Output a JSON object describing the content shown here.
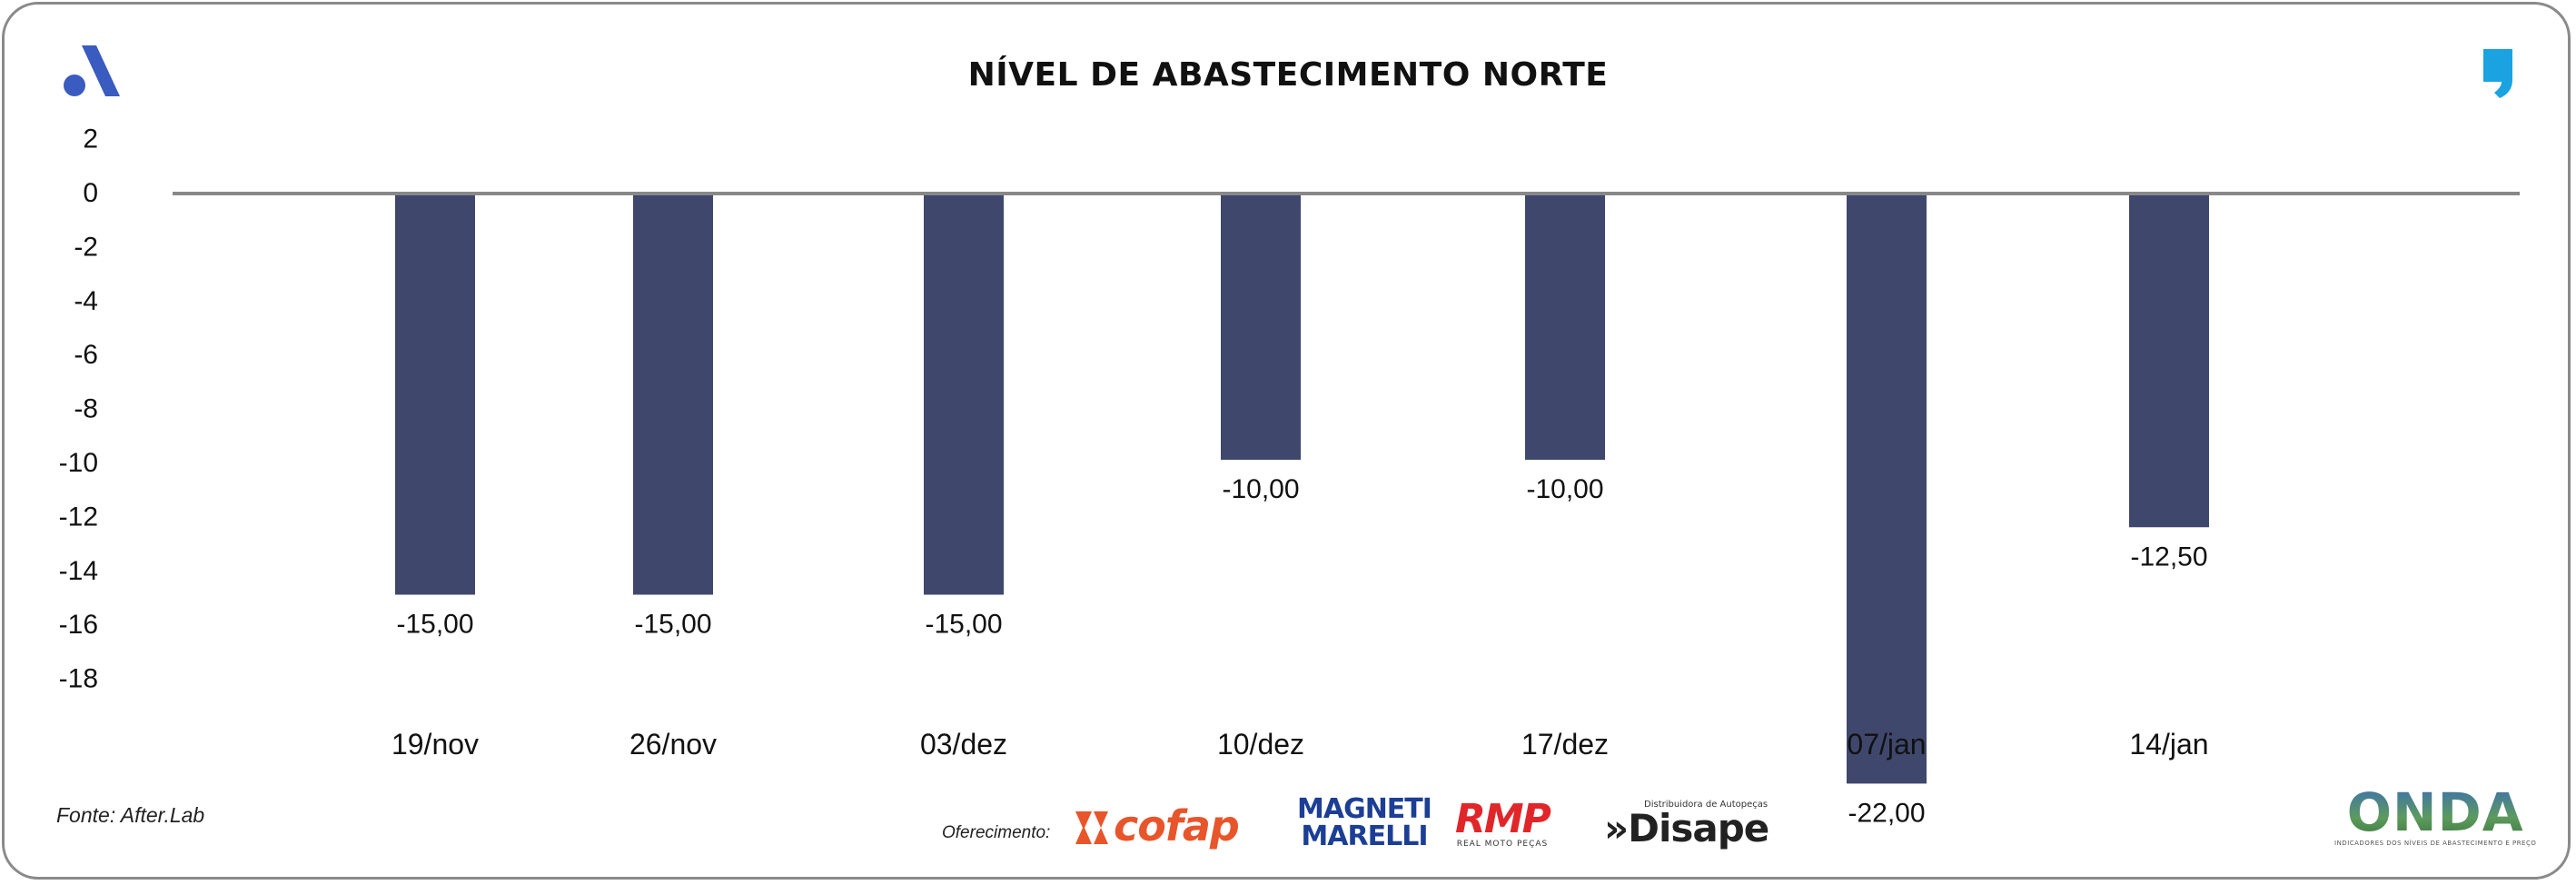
{
  "chart_data": {
    "type": "bar",
    "title": "NÍVEL DE ABASTECIMENTO NORTE",
    "categories": [
      "19/nov",
      "26/nov",
      "03/dez",
      "10/dez",
      "17/dez",
      "07/jan",
      "14/jan"
    ],
    "values": [
      -15.0,
      -15.0,
      -15.0,
      -10.0,
      -10.0,
      -22.0,
      -12.5
    ],
    "value_labels": [
      "-15,00",
      "-15,00",
      "-15,00",
      "-10,00",
      "-10,00",
      "-22,00",
      "-12,50"
    ],
    "yticks": [
      2,
      0,
      -2,
      -4,
      -6,
      -8,
      -10,
      -12,
      -14,
      -16,
      -18
    ],
    "ytick_labels": [
      "2",
      "0",
      "-2",
      "-4",
      "-6",
      "-8",
      "-10",
      "-12",
      "-14",
      "-16",
      "-18"
    ],
    "ylim": [
      -18,
      2
    ],
    "xlabel": "",
    "ylabel": "",
    "grid": false,
    "bar_color": "#3f486c",
    "axis_color": "#888888"
  },
  "footer": {
    "source": "Fonte: After.Lab",
    "sponsor_label": "Oferecimento:"
  },
  "sponsors": {
    "cofap": "cofap",
    "magneti_line1": "MAGNETI",
    "magneti_line2": "MARELLI",
    "rmp": "RMP",
    "rmp_sub": "REAL MOTO PEÇAS",
    "disape_sub": "Distribuidora de Autopeças",
    "disape": "»Disape",
    "onda": "ONDA",
    "onda_tag": "INDICADORES DOS NÍVEIS DE ABASTECIMENTO E PREÇO"
  },
  "colors": {
    "logo_blue": "#3a5bbf",
    "quote_cyan": "#1aa3e0"
  }
}
